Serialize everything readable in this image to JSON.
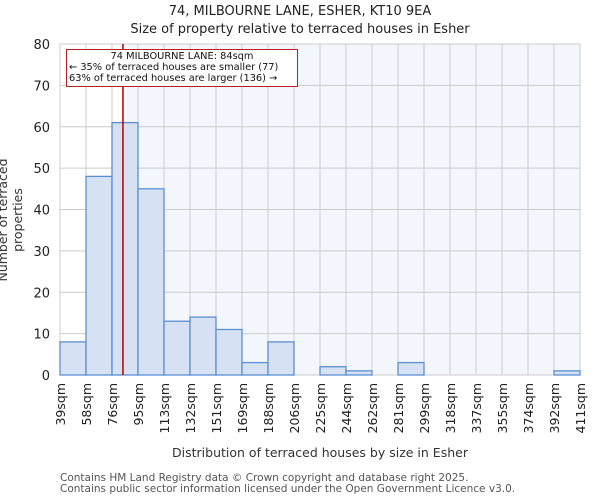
{
  "header": {
    "title_line1": "74, MILBOURNE LANE, ESHER, KT10 9EA",
    "title_line2": "Size of property relative to terraced houses in Esher"
  },
  "annotation": {
    "line1": "74 MILBOURNE LANE: 84sqm",
    "line2": "← 35% of terraced houses are smaller (77)",
    "line3": "63% of terraced houses are larger (136) →"
  },
  "footer": {
    "line1": "Contains HM Land Registry data © Crown copyright and database right 2025.",
    "line2": "Contains public sector information licensed under the Open Government Licence v3.0."
  },
  "colors": {
    "bar_fill": "#d6e2f3",
    "bar_stroke": "#5b8fd0",
    "marker_line": "#b00000",
    "grid": "#cccccc",
    "highlight_bg": "#f3f6fd"
  },
  "chart_data": {
    "type": "bar",
    "title": "74, MILBOURNE LANE, ESHER, KT10 9EA — Size of property relative to terraced houses in Esher",
    "xlabel": "Distribution of terraced houses by size in Esher",
    "ylabel": "Number of terraced properties",
    "categories": [
      "39sqm",
      "58sqm",
      "76sqm",
      "95sqm",
      "113sqm",
      "132sqm",
      "151sqm",
      "169sqm",
      "188sqm",
      "206sqm",
      "225sqm",
      "244sqm",
      "262sqm",
      "281sqm",
      "299sqm",
      "318sqm",
      "337sqm",
      "355sqm",
      "374sqm",
      "392sqm",
      "411sqm"
    ],
    "values": [
      8,
      48,
      61,
      45,
      13,
      14,
      11,
      3,
      8,
      0,
      2,
      1,
      0,
      3,
      0,
      0,
      0,
      0,
      0,
      1
    ],
    "bin_edges_sqm": [
      39,
      58,
      76,
      95,
      113,
      132,
      151,
      169,
      188,
      206,
      225,
      244,
      262,
      281,
      299,
      318,
      337,
      355,
      374,
      392,
      411
    ],
    "yticks": [
      0,
      10,
      20,
      30,
      40,
      50,
      60,
      70,
      80
    ],
    "ylim": [
      0,
      80
    ],
    "grid": true,
    "marker": {
      "value_sqm": 84,
      "label": "74 MILBOURNE LANE: 84sqm"
    }
  }
}
